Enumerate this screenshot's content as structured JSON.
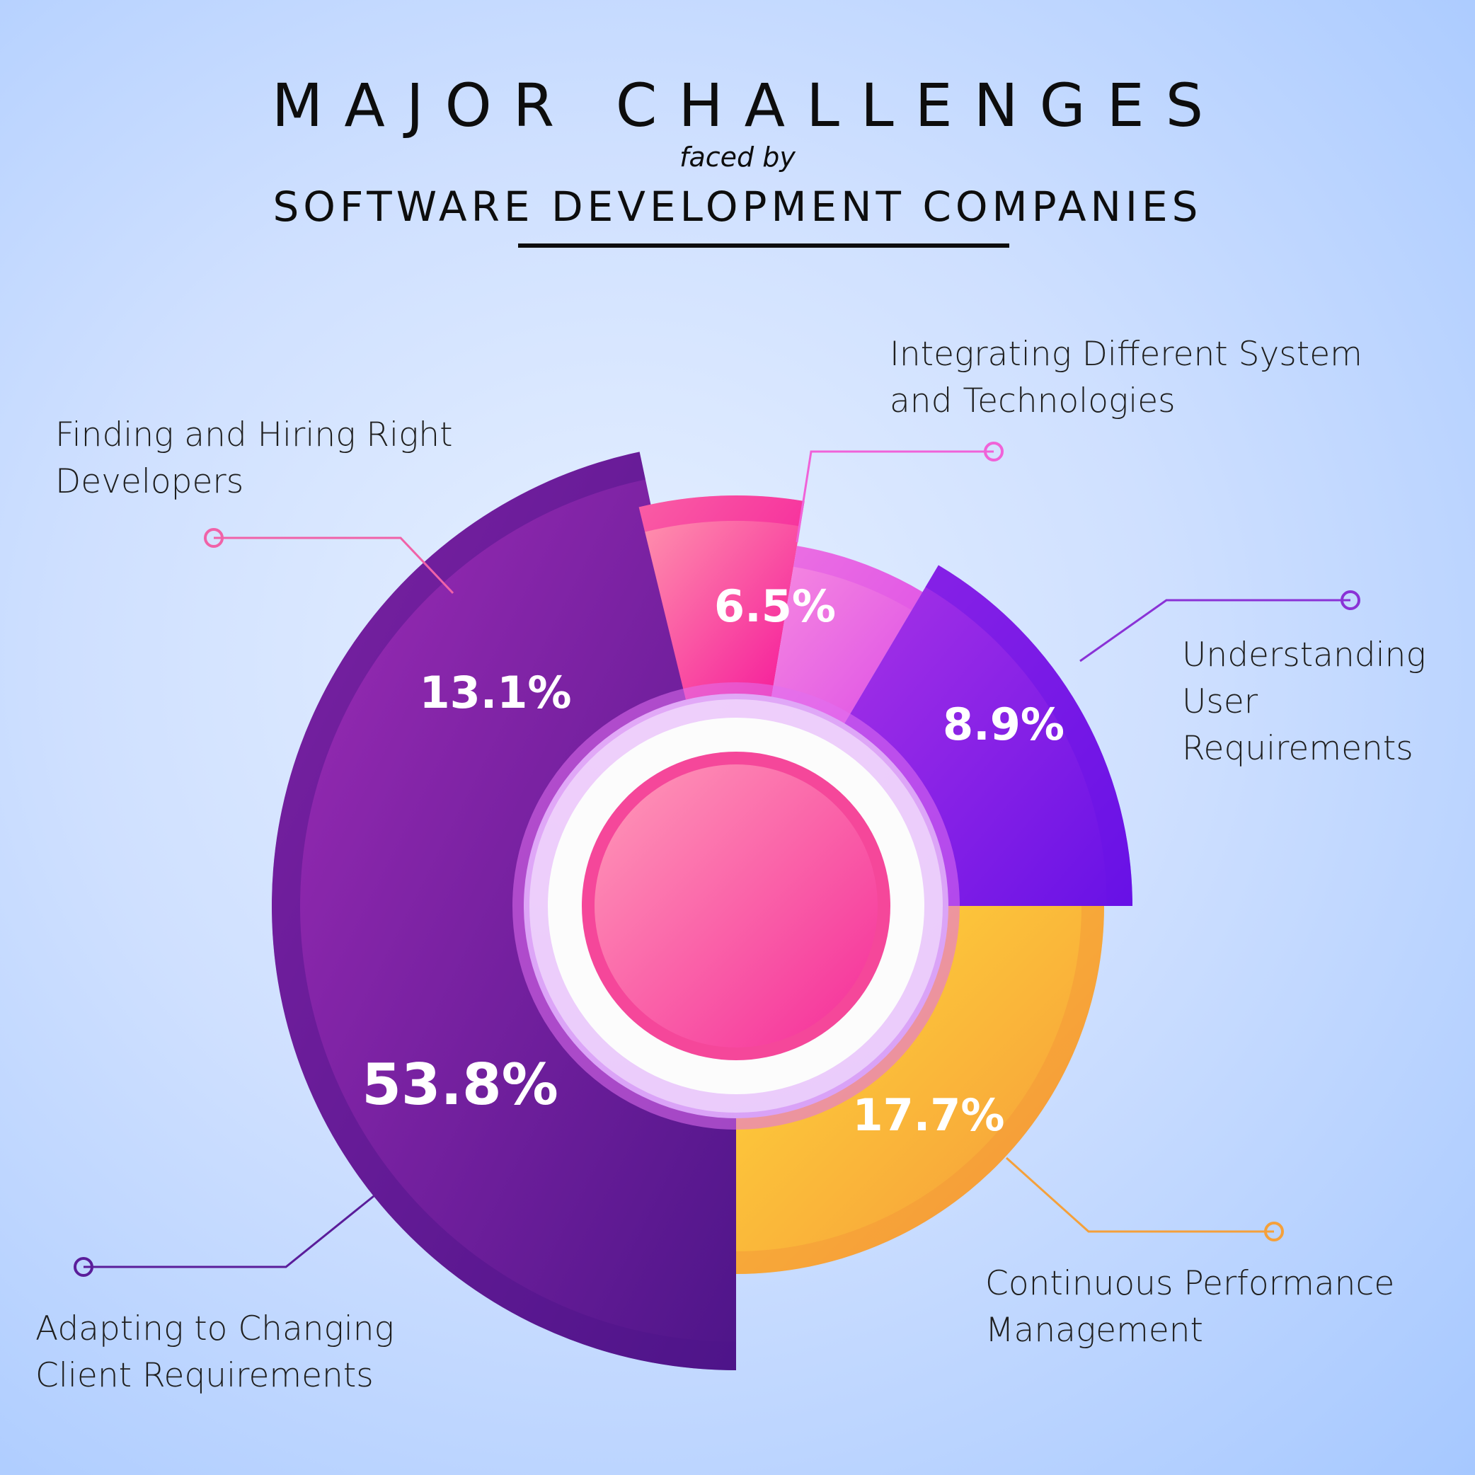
{
  "header": {
    "title": "MAJOR CHALLENGES",
    "subtitle": "faced by",
    "heading": "SOFTWARE DEVELOPMENT COMPANIES"
  },
  "chart_data": {
    "type": "pie",
    "categories": [
      "Adapting to Changing Client Requirements",
      "Finding and Hiring Right Developers",
      "Integrating Different System and Technologies",
      "Understanding User Requirements",
      "Continuous Performance Management"
    ],
    "values": [
      53.8,
      13.1,
      6.5,
      8.9,
      17.7
    ],
    "value_labels": [
      "53.8%",
      "13.1%",
      "6.5%",
      "8.9%",
      "17.7%"
    ],
    "label_lines": [
      [
        "Adapting to Changing",
        "Client Requirements"
      ],
      [
        "Finding and Hiring Right",
        "Developers"
      ],
      [
        "Integrating Different System",
        "and Technologies"
      ],
      [
        "Understanding",
        "User",
        "Requirements"
      ],
      [
        "Continuous Performance",
        "Management"
      ]
    ],
    "colors": [
      [
        "#a02db8",
        "#4e1589"
      ],
      [
        "#ff9aae",
        "#f5159a"
      ],
      [
        "#f78be0",
        "#dd4fe6"
      ],
      [
        "#a833e6",
        "#6811e6"
      ],
      [
        "#ffd93a",
        "#f5953a"
      ]
    ],
    "leader_colors": [
      "#5a1d9a",
      "#f062a8",
      "#f062d8",
      "#8a32d6",
      "#f5a03a"
    ],
    "center_color": "#f52d9a"
  }
}
